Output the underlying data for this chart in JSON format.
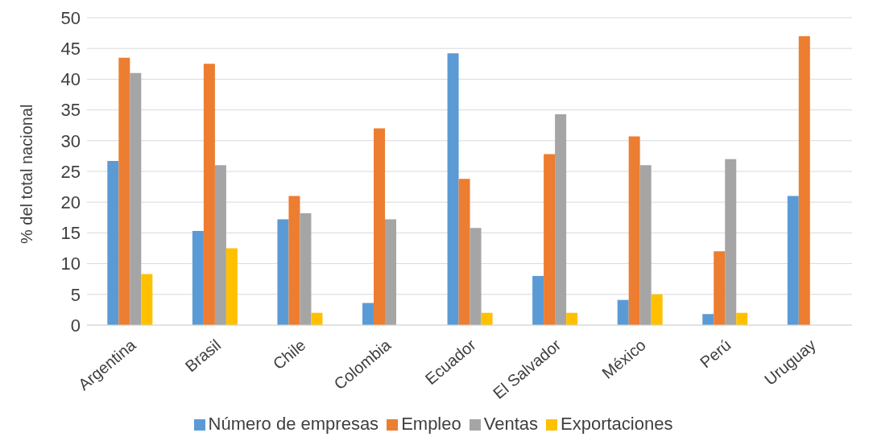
{
  "chart_data": {
    "type": "bar",
    "ylabel": "% del total nacional",
    "categories": [
      "Argentina",
      "Brasil",
      "Chile",
      "Colombia",
      "Ecuador",
      "El Salvador",
      "México",
      "Perú",
      "Uruguay"
    ],
    "series": [
      {
        "name": "Número de empresas",
        "color": "#5b9bd5",
        "values": [
          26.7,
          15.3,
          17.2,
          3.6,
          44.2,
          8,
          4.1,
          1.8,
          21
        ]
      },
      {
        "name": "Empleo",
        "color": "#ed7d31",
        "values": [
          43.5,
          42.5,
          21,
          32,
          23.8,
          27.8,
          30.7,
          12,
          47
        ]
      },
      {
        "name": "Ventas",
        "color": "#a5a5a5",
        "values": [
          41,
          26,
          18.2,
          17.2,
          15.8,
          34.3,
          26,
          27,
          null
        ]
      },
      {
        "name": "Exportaciones",
        "color": "#ffc000",
        "values": [
          8.3,
          12.5,
          2,
          null,
          2,
          2,
          5,
          2,
          null
        ]
      }
    ],
    "ylim": [
      0,
      50
    ],
    "yticks": [
      0,
      5,
      10,
      15,
      20,
      25,
      30,
      35,
      40,
      45,
      50
    ],
    "grid": "y",
    "legend": "bottom"
  }
}
